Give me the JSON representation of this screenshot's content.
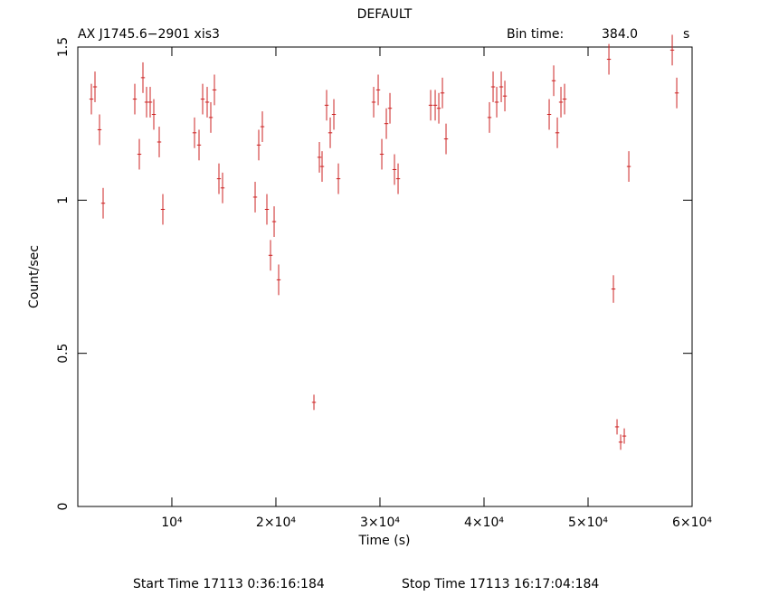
{
  "chart_data": {
    "type": "errorbar",
    "title": "DEFAULT",
    "subtitle": "AX J1745.6−2901  xis3",
    "bin_label": "Bin time:",
    "bin_value": "384.0",
    "bin_unit": "s",
    "xlabel": "Time (s)",
    "ylabel": "Count/sec",
    "footer_start": "Start Time 17113  0:36:16:184",
    "footer_stop": "Stop Time 17113 16:17:04:184",
    "color": "#cc2222",
    "xlim": [
      960,
      60000
    ],
    "ylim": [
      0,
      1.5
    ],
    "xticks": [
      {
        "value": 10000,
        "label": "10⁴"
      },
      {
        "value": 20000,
        "label": "2×10⁴"
      },
      {
        "value": 30000,
        "label": "3×10⁴"
      },
      {
        "value": 40000,
        "label": "4×10⁴"
      },
      {
        "value": 50000,
        "label": "5×10⁴"
      },
      {
        "value": 60000,
        "label": "6×10⁴"
      }
    ],
    "yticks": [
      0,
      0.5,
      1,
      1.5
    ],
    "xerr": 192,
    "x": [
      2264,
      2612,
      3047,
      3395,
      6438,
      6873,
      7221,
      7569,
      7917,
      8265,
      8786,
      9134,
      12178,
      12612,
      12960,
      13395,
      13743,
      14091,
      14525,
      14873,
      18004,
      18351,
      18699,
      19134,
      19482,
      19830,
      20264,
      23656,
      24178,
      24438,
      24873,
      25221,
      25569,
      26004,
      29395,
      29830,
      30178,
      30612,
      30960,
      31395,
      31743,
      34873,
      35308,
      35656,
      36004,
      36351,
      40525,
      40873,
      41221,
      41656,
      42004,
      46264,
      46699,
      47047,
      47395,
      47743,
      52004,
      52438,
      52786,
      53134,
      53482,
      53917,
      58090,
      58525
    ],
    "values": [
      1.33,
      1.37,
      1.23,
      0.99,
      1.33,
      1.15,
      1.4,
      1.32,
      1.32,
      1.28,
      1.19,
      0.97,
      1.22,
      1.18,
      1.33,
      1.32,
      1.27,
      1.36,
      1.07,
      1.04,
      1.01,
      1.18,
      1.24,
      0.97,
      0.82,
      0.93,
      0.74,
      0.34,
      1.14,
      1.11,
      1.31,
      1.22,
      1.28,
      1.07,
      1.32,
      1.36,
      1.15,
      1.25,
      1.3,
      1.1,
      1.07,
      1.31,
      1.31,
      1.3,
      1.35,
      1.2,
      1.27,
      1.37,
      1.32,
      1.37,
      1.34,
      1.28,
      1.39,
      1.22,
      1.32,
      1.33,
      1.46,
      0.71,
      0.26,
      0.21,
      0.23,
      1.11,
      1.49,
      1.35
    ],
    "yerr": [
      0.05,
      0.05,
      0.05,
      0.05,
      0.05,
      0.05,
      0.05,
      0.05,
      0.05,
      0.05,
      0.05,
      0.05,
      0.05,
      0.05,
      0.05,
      0.05,
      0.05,
      0.05,
      0.05,
      0.05,
      0.05,
      0.05,
      0.05,
      0.05,
      0.05,
      0.05,
      0.05,
      0.025,
      0.05,
      0.05,
      0.05,
      0.05,
      0.05,
      0.05,
      0.05,
      0.05,
      0.05,
      0.05,
      0.05,
      0.05,
      0.05,
      0.05,
      0.05,
      0.05,
      0.05,
      0.05,
      0.05,
      0.05,
      0.05,
      0.05,
      0.05,
      0.05,
      0.05,
      0.05,
      0.05,
      0.05,
      0.05,
      0.045,
      0.025,
      0.025,
      0.025,
      0.05,
      0.05,
      0.05
    ]
  }
}
